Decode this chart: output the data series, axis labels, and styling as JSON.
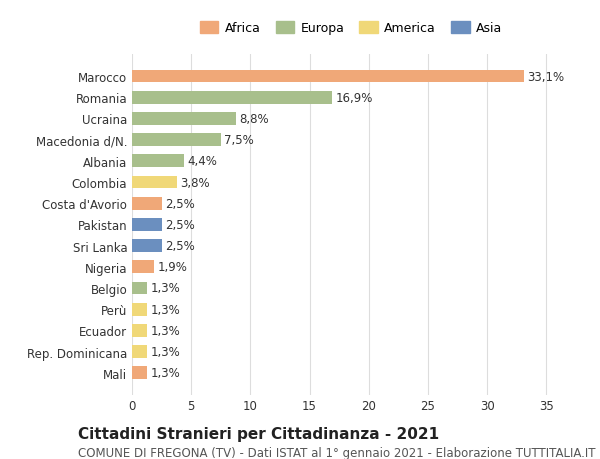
{
  "countries": [
    "Marocco",
    "Romania",
    "Ucraina",
    "Macedonia d/N.",
    "Albania",
    "Colombia",
    "Costa d'Avorio",
    "Pakistan",
    "Sri Lanka",
    "Nigeria",
    "Belgio",
    "Perù",
    "Ecuador",
    "Rep. Dominicana",
    "Mali"
  ],
  "values": [
    33.1,
    16.9,
    8.8,
    7.5,
    4.4,
    3.8,
    2.5,
    2.5,
    2.5,
    1.9,
    1.3,
    1.3,
    1.3,
    1.3,
    1.3
  ],
  "labels": [
    "33,1%",
    "16,9%",
    "8,8%",
    "7,5%",
    "4,4%",
    "3,8%",
    "2,5%",
    "2,5%",
    "2,5%",
    "1,9%",
    "1,3%",
    "1,3%",
    "1,3%",
    "1,3%",
    "1,3%"
  ],
  "continents": [
    "Africa",
    "Europa",
    "Europa",
    "Europa",
    "Europa",
    "America",
    "Africa",
    "Asia",
    "Asia",
    "Africa",
    "Europa",
    "America",
    "America",
    "America",
    "Africa"
  ],
  "colors": {
    "Africa": "#F0A878",
    "Europa": "#A8BF8C",
    "America": "#F0D878",
    "Asia": "#6B8FBF"
  },
  "legend_colors": {
    "Africa": "#F0A878",
    "Europa": "#A8BF8C",
    "America": "#F0D878",
    "Asia": "#6B8FBF"
  },
  "xlim": [
    0,
    37
  ],
  "xticks": [
    0,
    5,
    10,
    15,
    20,
    25,
    30,
    35
  ],
  "title": "Cittadini Stranieri per Cittadinanza - 2021",
  "subtitle": "COMUNE DI FREGONA (TV) - Dati ISTAT al 1° gennaio 2021 - Elaborazione TUTTITALIA.IT",
  "background_color": "#ffffff",
  "grid_color": "#dddddd",
  "bar_height": 0.6,
  "label_fontsize": 8.5,
  "tick_fontsize": 8.5,
  "title_fontsize": 11,
  "subtitle_fontsize": 8.5
}
